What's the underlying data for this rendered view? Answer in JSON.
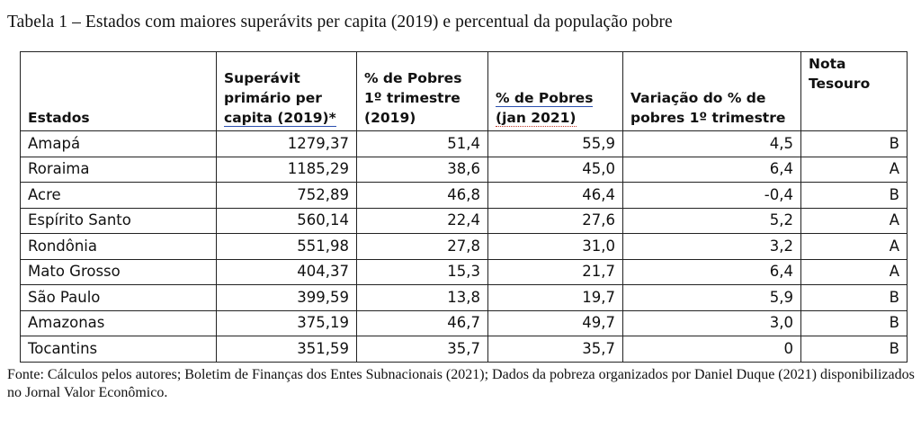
{
  "title": "Tabela 1 – Estados com maiores superávits per capita (2019) e percentual da população pobre",
  "headers": {
    "estados": "Estados",
    "superavit": [
      "Superávit",
      "primário per",
      "capita (2019)*"
    ],
    "pobres_2019": [
      "% de Pobres",
      "1º trimestre",
      "(2019)"
    ],
    "pobres_2021": [
      "% de Pobres",
      "(jan 2021)"
    ],
    "variacao": [
      "Variação do % de",
      "pobres 1º trimestre"
    ],
    "nota": [
      "Nota",
      "Tesouro"
    ]
  },
  "rows": [
    [
      "Amapá",
      "1279,37",
      "51,4",
      "55,9",
      "4,5",
      "B"
    ],
    [
      "Roraima",
      "1185,29",
      "38,6",
      "45,0",
      "6,4",
      "A"
    ],
    [
      "Acre",
      "752,89",
      "46,8",
      "46,4",
      "-0,4",
      "B"
    ],
    [
      "Espírito Santo",
      "560,14",
      "22,4",
      "27,6",
      "5,2",
      "A"
    ],
    [
      "Rondônia",
      "551,98",
      "27,8",
      "31,0",
      "3,2",
      "A"
    ],
    [
      "Mato Grosso",
      "404,37",
      "15,3",
      "21,7",
      "6,4",
      "A"
    ],
    [
      "São Paulo",
      "399,59",
      "13,8",
      "19,7",
      "5,9",
      "B"
    ],
    [
      "Amazonas",
      "375,19",
      "46,7",
      "49,7",
      "3,0",
      "B"
    ],
    [
      "Tocantins",
      "351,59",
      "35,7",
      "35,7",
      "0",
      "B"
    ]
  ],
  "source": "Fonte:  Cálculos pelos autores; Boletim de Finanças dos Entes Subnacionais (2021); Dados da pobreza organizados por Daniel Duque (2021) disponibilizados no Jornal Valor Econômico."
}
